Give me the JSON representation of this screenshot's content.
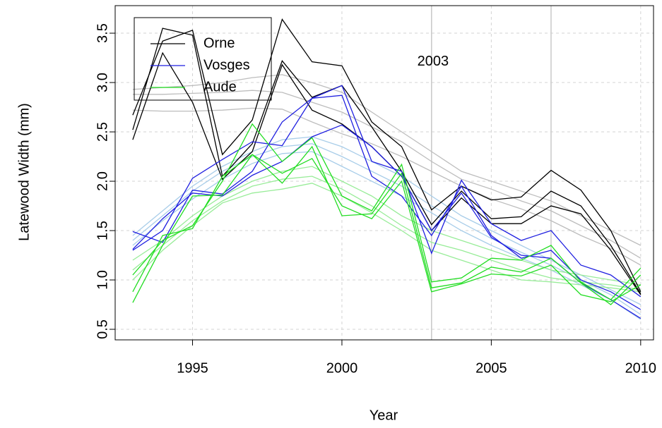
{
  "chart_data": {
    "type": "line",
    "x_label": "Year",
    "y_label": "Latewood Width (mm)",
    "x": [
      1993,
      1994,
      1995,
      1996,
      1997,
      1998,
      1999,
      2000,
      2001,
      2002,
      2003,
      2004,
      2005,
      2006,
      2007,
      2008,
      2009,
      2010
    ],
    "xlim": [
      1992.41,
      2010.43
    ],
    "xticks": [
      1995,
      2000,
      2005,
      2010
    ],
    "ylim": [
      0.393,
      3.779
    ],
    "yticks": [
      0.5,
      {
        "value": 1,
        "label": "1.0"
      },
      1.5,
      {
        "value": 2,
        "label": "2.0"
      },
      2.5,
      {
        "value": 3,
        "label": "3.0"
      },
      3.5
    ],
    "grid": true,
    "vlines": [
      2003,
      2007
    ],
    "vline_color": "#c8c8c8",
    "annotation": {
      "text": "2003",
      "x": 2003.05,
      "y": 3.21
    },
    "legend": "topleft",
    "series": [
      {
        "color": "#bdbdbd",
        "values": [
          2.93,
          2.95,
          2.97,
          3.0,
          3.05,
          3.08,
          3.0,
          2.9,
          2.7,
          2.5,
          2.3,
          2.1,
          2.0,
          1.9,
          1.8,
          1.65,
          1.5,
          1.35
        ]
      },
      {
        "color": "#bdbdbd",
        "values": [
          2.88,
          2.88,
          2.89,
          2.9,
          2.92,
          2.9,
          2.8,
          2.7,
          2.55,
          2.4,
          2.2,
          2.02,
          1.92,
          1.8,
          1.7,
          1.55,
          1.4,
          1.22
        ]
      },
      {
        "color": "#bdbdbd",
        "values": [
          2.72,
          2.71,
          2.71,
          2.72,
          2.74,
          2.73,
          2.6,
          2.48,
          2.38,
          2.25,
          2.1,
          1.95,
          1.82,
          1.72,
          1.6,
          1.45,
          1.32,
          1.15
        ]
      },
      {
        "color": "#a8cde9",
        "values": [
          1.45,
          1.7,
          1.95,
          2.15,
          2.3,
          2.42,
          2.45,
          2.35,
          2.2,
          2.05,
          1.85,
          1.65,
          1.5,
          1.35,
          1.2,
          1.05,
          0.9,
          0.75
        ]
      },
      {
        "color": "#a8cde9",
        "values": [
          1.4,
          1.65,
          1.9,
          2.1,
          2.25,
          2.35,
          2.38,
          2.25,
          2.1,
          1.95,
          1.75,
          1.58,
          1.42,
          1.28,
          1.15,
          1.0,
          0.85,
          0.65
        ]
      },
      {
        "color": "#a8cde9",
        "values": [
          1.35,
          1.6,
          1.82,
          2.02,
          2.18,
          2.28,
          2.3,
          2.15,
          2.0,
          1.85,
          1.68,
          1.5,
          1.35,
          1.22,
          1.1,
          0.95,
          0.8,
          0.6
        ]
      },
      {
        "color": "#98ec98",
        "values": [
          1.2,
          1.4,
          1.65,
          1.85,
          2.0,
          2.1,
          2.15,
          2.0,
          1.85,
          1.65,
          1.5,
          1.4,
          1.3,
          1.2,
          1.1,
          1.05,
          1.0,
          0.95
        ]
      },
      {
        "color": "#98ec98",
        "values": [
          1.1,
          1.35,
          1.6,
          1.8,
          1.95,
          2.02,
          2.05,
          1.92,
          1.75,
          1.55,
          1.38,
          1.3,
          1.2,
          1.1,
          1.02,
          0.98,
          0.95,
          0.9
        ]
      },
      {
        "color": "#98ec98",
        "values": [
          1.0,
          1.3,
          1.55,
          1.78,
          1.88,
          1.92,
          1.98,
          1.85,
          1.68,
          1.5,
          1.3,
          1.2,
          1.1,
          1.0,
          0.98,
          0.95,
          0.92,
          0.88
        ]
      },
      {
        "name": "Orne",
        "color": "#000000",
        "values": [
          2.67,
          3.42,
          3.53,
          2.27,
          2.62,
          3.64,
          3.21,
          3.17,
          2.6,
          2.35,
          1.71,
          1.95,
          1.81,
          1.84,
          2.11,
          1.91,
          1.5,
          0.88
        ]
      },
      {
        "color": "#000000",
        "values": [
          2.52,
          3.55,
          3.48,
          2.05,
          2.38,
          3.22,
          2.85,
          2.97,
          2.55,
          2.1,
          1.56,
          1.9,
          1.62,
          1.64,
          1.9,
          1.75,
          1.35,
          0.86
        ]
      },
      {
        "color": "#000000",
        "values": [
          2.42,
          3.3,
          2.8,
          2.02,
          2.3,
          3.18,
          2.72,
          2.58,
          2.35,
          2.05,
          1.5,
          1.83,
          1.57,
          1.57,
          1.75,
          1.67,
          1.3,
          0.85
        ]
      },
      {
        "name": "Vosges",
        "color": "#1f1fe0",
        "values": [
          1.3,
          1.5,
          2.03,
          2.22,
          2.4,
          2.36,
          2.84,
          2.97,
          2.2,
          2.1,
          1.27,
          2.01,
          1.57,
          1.4,
          1.5,
          1.15,
          1.05,
          0.83
        ]
      },
      {
        "color": "#1f1fe0",
        "values": [
          1.49,
          1.38,
          1.91,
          1.87,
          2.1,
          2.6,
          2.84,
          2.87,
          2.05,
          1.85,
          1.45,
          1.95,
          1.45,
          1.22,
          1.3,
          1.0,
          0.88,
          0.7
        ]
      },
      {
        "color": "#1f1fe0",
        "values": [
          1.31,
          1.62,
          1.88,
          1.85,
          2.06,
          2.2,
          2.45,
          2.57,
          2.35,
          2.05,
          1.5,
          1.88,
          1.43,
          1.25,
          1.22,
          0.97,
          0.8,
          0.61
        ]
      },
      {
        "name": "Aude",
        "color": "#22dd22",
        "values": [
          1.05,
          1.4,
          1.55,
          2.0,
          2.58,
          2.2,
          2.44,
          1.85,
          1.7,
          2.17,
          0.98,
          1.02,
          1.22,
          1.2,
          1.35,
          0.98,
          0.8,
          1.12
        ]
      },
      {
        "color": "#22dd22",
        "values": [
          0.77,
          1.35,
          1.85,
          1.86,
          2.27,
          1.98,
          2.35,
          1.65,
          1.67,
          2.08,
          0.92,
          0.97,
          1.13,
          1.08,
          1.22,
          0.97,
          0.75,
          1.05
        ]
      },
      {
        "color": "#22dd22",
        "values": [
          0.88,
          1.45,
          1.52,
          2.05,
          2.27,
          2.08,
          2.23,
          1.75,
          1.62,
          2.0,
          0.88,
          0.96,
          1.06,
          1.04,
          1.15,
          0.85,
          0.78,
          0.95
        ]
      }
    ]
  }
}
